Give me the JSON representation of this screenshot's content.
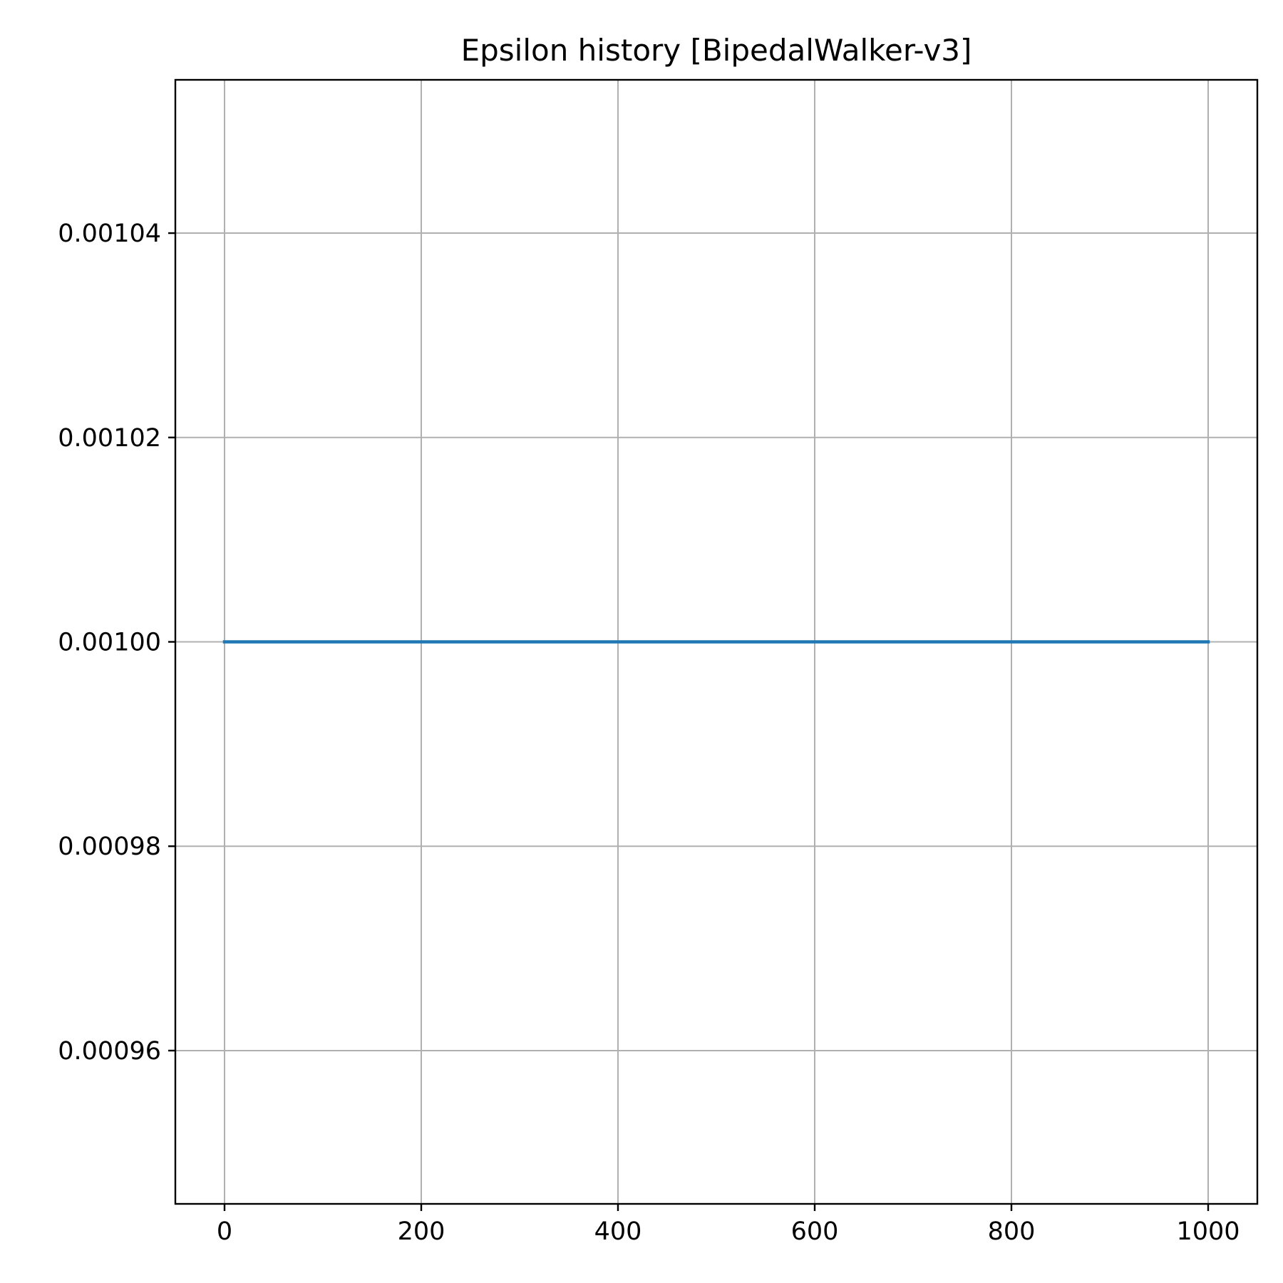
{
  "chart_data": {
    "type": "line",
    "title": "Epsilon history [BipedalWalker-v3]",
    "xlabel": "",
    "ylabel": "",
    "xlim": [
      -50,
      1050
    ],
    "ylim": [
      0.000945,
      0.001055
    ],
    "x_ticks": [
      0,
      200,
      400,
      600,
      800,
      1000
    ],
    "x_tick_labels": [
      "0",
      "200",
      "400",
      "600",
      "800",
      "1000"
    ],
    "y_ticks": [
      0.00096,
      0.00098,
      0.001,
      0.00102,
      0.00104
    ],
    "y_tick_labels": [
      "0.00096",
      "0.00098",
      "0.00100",
      "0.00102",
      "0.00104"
    ],
    "grid": true,
    "legend": "none",
    "series": [
      {
        "color": "#1f77b4",
        "x": [
          0,
          1000
        ],
        "y": [
          0.001,
          0.001
        ]
      }
    ]
  }
}
